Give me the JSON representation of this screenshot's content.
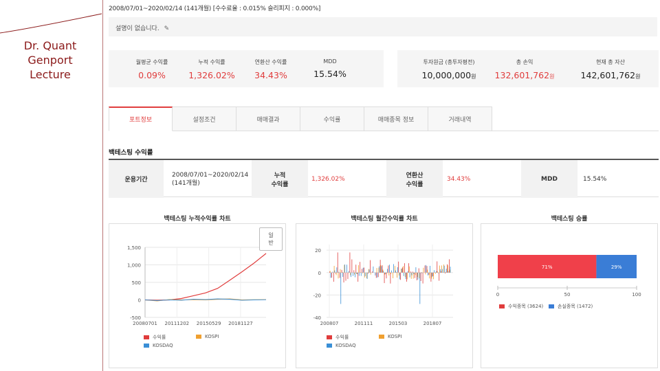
{
  "lecture": {
    "line1": "Dr. Quant",
    "line2": "Genport",
    "line3": "Lecture"
  },
  "header": {
    "period_line": "2008/07/01~2020/02/14 (141개월) [수수료율 : 0.015% 슬리피지 : 0.000%]",
    "description": "설명이 없습니다."
  },
  "stats_left": [
    {
      "label": "월평균 수익률",
      "value": "0.09%",
      "color": "red"
    },
    {
      "label": "누적 수익률",
      "value": "1,326.02%",
      "color": "red"
    },
    {
      "label": "연환산 수익률",
      "value": "34.43%",
      "color": "red"
    },
    {
      "label": "MDD",
      "value": "15.54%",
      "color": "dark"
    }
  ],
  "stats_right": [
    {
      "label": "투자원금 (총투자평전)",
      "value": "10,000,000",
      "unit": "원",
      "color": "dark"
    },
    {
      "label": "총 손익",
      "value": "132,601,762",
      "unit": "원",
      "color": "red"
    },
    {
      "label": "현재 총 자산",
      "value": "142,601,762",
      "unit": "원",
      "color": "dark"
    }
  ],
  "tabs": [
    "포트정보",
    "설정조건",
    "매매결과",
    "수익률",
    "매매종목 정보",
    "거래내역"
  ],
  "active_tab": "포트정보",
  "section_title": "백테스팅 수익률",
  "summary": {
    "period_label": "운용기간",
    "period_value": "2008/07/01~2020/02/14",
    "period_months": "(141개월)",
    "cum_label_1": "누적",
    "cum_label_2": "수익률",
    "cum_value": "1,326.02%",
    "ann_label_1": "연환산",
    "ann_label_2": "수익률",
    "ann_value": "34.43%",
    "mdd_label": "MDD",
    "mdd_value": "15.54%"
  },
  "charts": {
    "cumulative": {
      "title": "백테스팅 누적수익률 차트",
      "mode_button": [
        "일",
        "반"
      ],
      "y_ticks": [
        "1,500",
        "1,000",
        "500",
        "0",
        "-500"
      ],
      "x_ticks": [
        "20080701",
        "20111202",
        "20150529",
        "20181127"
      ],
      "legend": [
        "수익률",
        "KOSPI",
        "KOSDAQ"
      ]
    },
    "monthly": {
      "title": "백테스팅 월간수익률 차트",
      "y_ticks": [
        "20",
        "0",
        "-20",
        "-40"
      ],
      "x_ticks": [
        "200807",
        "201111",
        "201503",
        "201807"
      ],
      "legend": [
        "수익률",
        "KOSPI",
        "KOSDAQ"
      ]
    },
    "winrate": {
      "title": "백테스팅 승률",
      "win_label": "71%",
      "loss_label": "29%",
      "x_ticks": [
        "0",
        "50",
        "100"
      ],
      "legend": [
        "수익종목 (3624)",
        "손실종목 (1472)"
      ]
    }
  },
  "colors": {
    "accent_red": "#e03c3c",
    "kospi_orange": "#f0a030",
    "kosdaq_blue": "#3a8fd6",
    "loss_blue": "#3a7dd6"
  },
  "chart_data": [
    {
      "type": "line",
      "title": "백테스팅 누적수익률 차트",
      "x": [
        "20080701",
        "20100101",
        "20111202",
        "20130601",
        "20150529",
        "20160601",
        "20170601",
        "20180101",
        "20181127",
        "20190601",
        "20200214"
      ],
      "series": [
        {
          "name": "수익률",
          "values": [
            0,
            -10,
            0,
            40,
            120,
            200,
            330,
            560,
            800,
            1050,
            1326
          ]
        },
        {
          "name": "KOSPI",
          "values": [
            0,
            -30,
            10,
            0,
            5,
            0,
            20,
            30,
            0,
            5,
            10
          ]
        },
        {
          "name": "KOSDAQ",
          "values": [
            0,
            -20,
            0,
            -10,
            20,
            10,
            30,
            20,
            -10,
            0,
            5
          ]
        }
      ],
      "ylim": [
        -500,
        1500
      ]
    },
    {
      "type": "bar",
      "title": "백테스팅 월간수익률 차트",
      "x": [
        "200807",
        "201111",
        "201503",
        "201807"
      ],
      "ylim": [
        -40,
        25
      ],
      "series": [
        {
          "name": "수익률",
          "range": [
            -25,
            18
          ]
        },
        {
          "name": "KOSPI",
          "range": [
            -10,
            10
          ]
        },
        {
          "name": "KOSDAQ",
          "range": [
            -30,
            18
          ]
        }
      ]
    },
    {
      "type": "bar",
      "title": "백테스팅 승률",
      "categories": [
        "수익종목 (3624)",
        "손실종목 (1472)"
      ],
      "values": [
        71,
        29
      ],
      "xlim": [
        0,
        100
      ]
    }
  ]
}
